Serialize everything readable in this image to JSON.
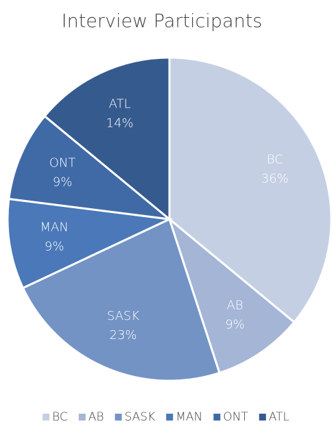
{
  "chart_data": {
    "type": "pie",
    "title": "Interview Participants",
    "categories": [
      "BC",
      "AB",
      "SASK",
      "MAN",
      "ONT",
      "ATL"
    ],
    "values": [
      36,
      9,
      23,
      9,
      9,
      14
    ],
    "value_labels": [
      "36%",
      "9%",
      "23%",
      "9%",
      "9%",
      "14%"
    ],
    "colors": [
      "#c5cfe3",
      "#a4b5d6",
      "#7393c5",
      "#4a78b8",
      "#3f6aa6",
      "#355a8e"
    ],
    "legend": "bottom"
  }
}
